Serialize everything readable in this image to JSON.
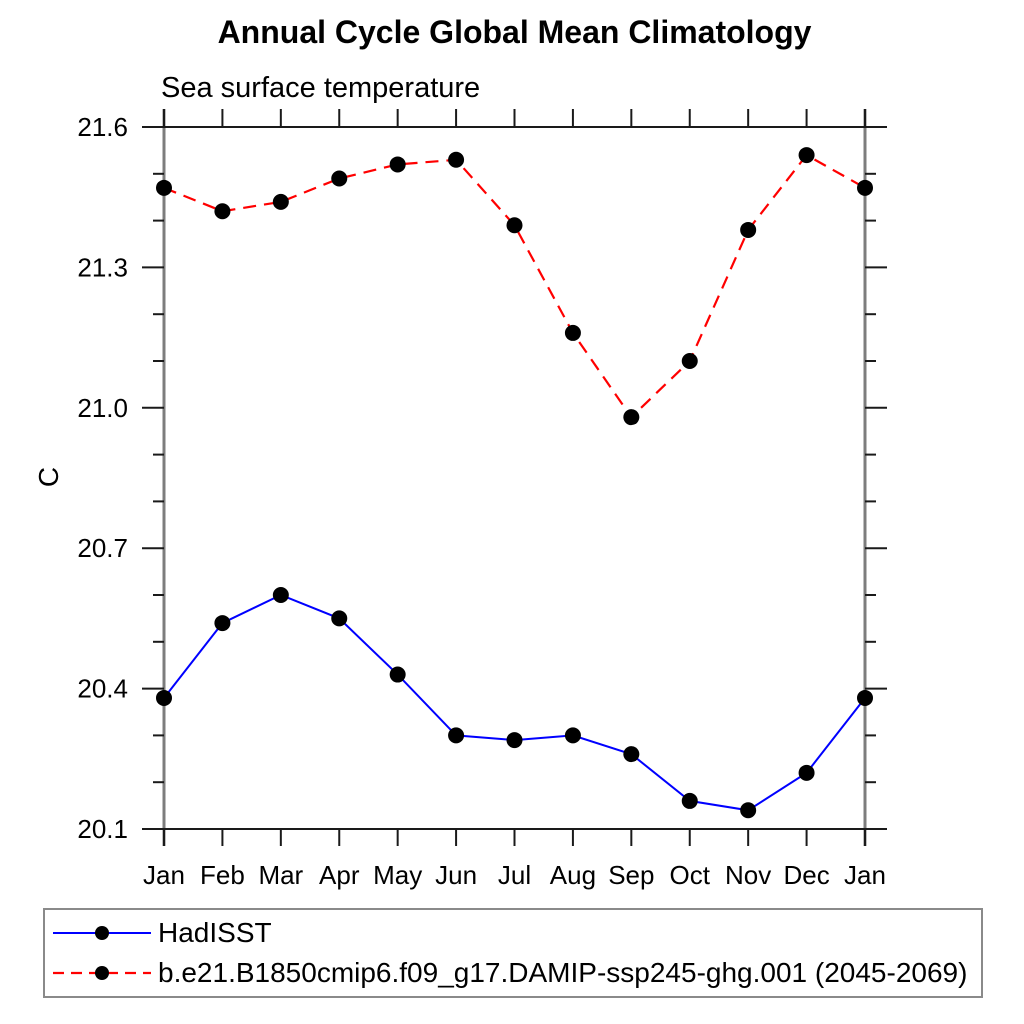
{
  "chart_data": {
    "type": "line",
    "title": "Annual Cycle Global Mean Climatology",
    "subtitle": "Sea surface temperature",
    "ylabel": "C",
    "categories": [
      "Jan",
      "Feb",
      "Mar",
      "Apr",
      "May",
      "Jun",
      "Jul",
      "Aug",
      "Sep",
      "Oct",
      "Nov",
      "Dec",
      "Jan"
    ],
    "ylim": [
      20.1,
      21.6
    ],
    "ytick_labels": [
      "21.6",
      "21.3",
      "21.0",
      "20.7",
      "20.4",
      "20.1"
    ],
    "yticks_major": [
      21.6,
      21.3,
      21.0,
      20.7,
      20.4,
      20.1
    ],
    "ytick_minor_step": 0.1,
    "grid": false,
    "legend_position": "bottom-left box",
    "series": [
      {
        "name": "HadISST",
        "line_color": "#0000ff",
        "line_style": "solid",
        "marker": "filled-circle",
        "marker_color": "#000000",
        "values": [
          20.38,
          20.54,
          20.6,
          20.55,
          20.43,
          20.3,
          20.29,
          20.3,
          20.26,
          20.16,
          20.14,
          20.22,
          20.38
        ]
      },
      {
        "name": "b.e21.B1850cmip6.f09_g17.DAMIP-ssp245-ghg.001 (2045-2069)",
        "line_color": "#ff0000",
        "line_style": "dashed",
        "marker": "filled-circle",
        "marker_color": "#000000",
        "values": [
          21.47,
          21.42,
          21.44,
          21.49,
          21.52,
          21.53,
          21.39,
          21.16,
          20.98,
          21.1,
          21.38,
          21.54,
          21.47
        ]
      }
    ]
  }
}
